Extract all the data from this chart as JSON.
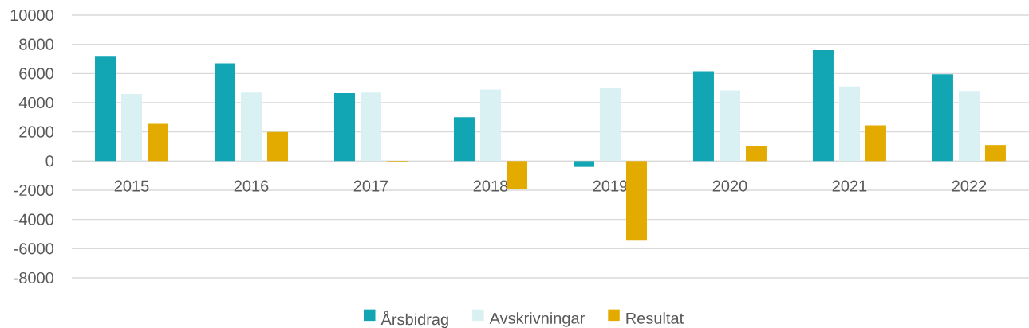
{
  "chart_data": {
    "type": "bar",
    "categories": [
      "2015",
      "2016",
      "2017",
      "2018",
      "2019",
      "2020",
      "2021",
      "2022"
    ],
    "series": [
      {
        "name": "Årsbidrag",
        "color": "#12a6b5",
        "values": [
          7200,
          6700,
          4650,
          3000,
          -400,
          6150,
          7600,
          5950
        ]
      },
      {
        "name": "Avskrivningar",
        "color": "#d9f1f3",
        "values": [
          4600,
          4700,
          4700,
          4900,
          5000,
          4850,
          5100,
          4800
        ]
      },
      {
        "name": "Resultat",
        "color": "#e3ab00",
        "values": [
          2550,
          2000,
          -50,
          -1950,
          -5450,
          1050,
          2450,
          1100
        ]
      }
    ],
    "ylim": [
      -8000,
      10000
    ],
    "yticks": [
      -8000,
      -6000,
      -4000,
      -2000,
      0,
      2000,
      4000,
      6000,
      8000,
      10000
    ],
    "grid": "y",
    "legend": "bottom"
  }
}
